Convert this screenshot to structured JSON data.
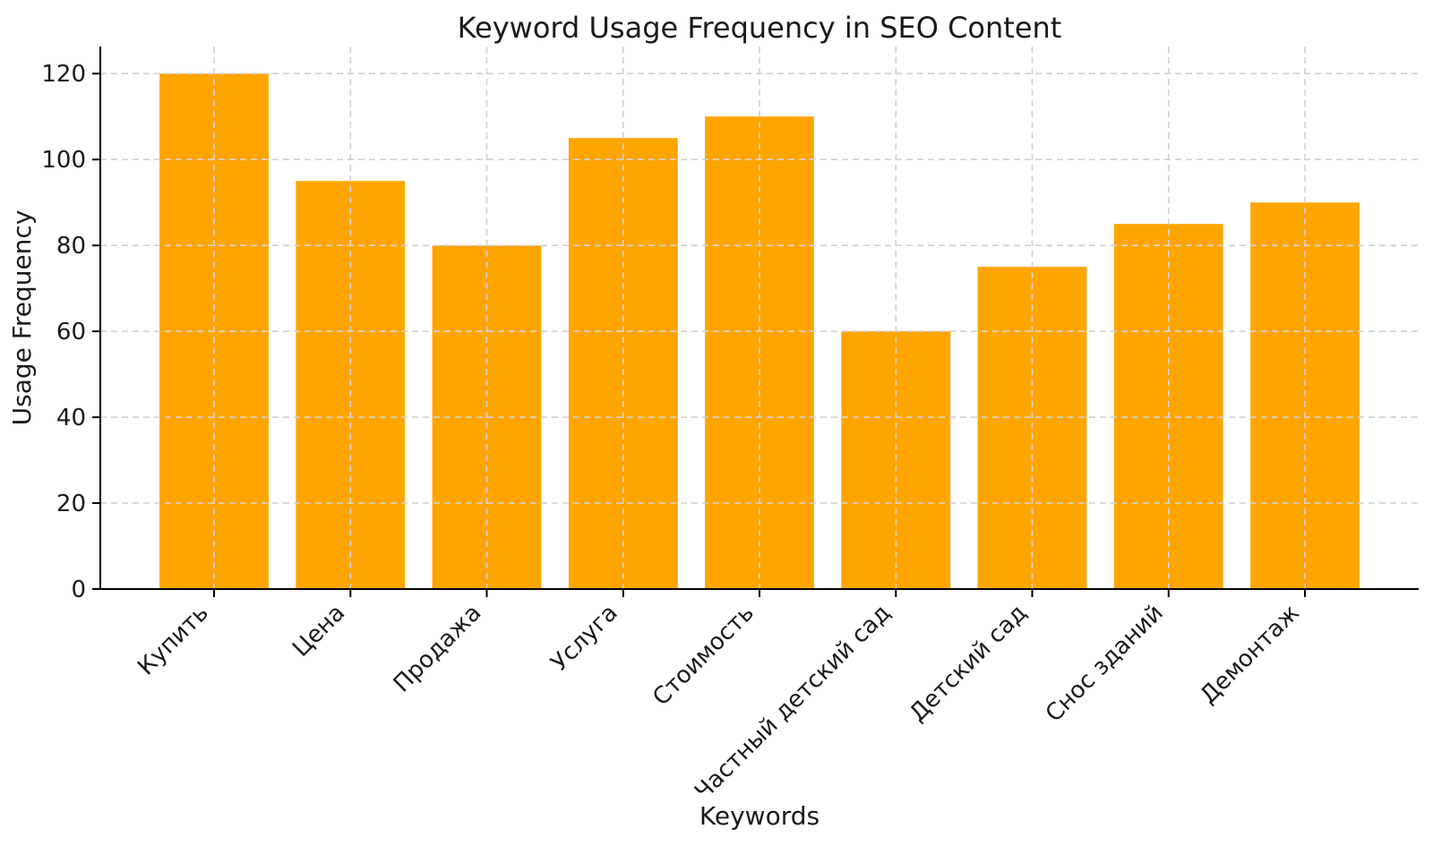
{
  "chart_data": {
    "type": "bar",
    "title": "Keyword Usage Frequency in SEO Content",
    "xlabel": "Keywords",
    "ylabel": "Usage Frequency",
    "categories": [
      "Купить",
      "Цена",
      "Продажа",
      "Услуга",
      "Стоимость",
      "Частный детский сад",
      "Детский сад",
      "Снос зданий",
      "Демонтаж"
    ],
    "values": [
      120,
      95,
      80,
      105,
      110,
      60,
      75,
      85,
      90
    ],
    "yticks": [
      0,
      20,
      40,
      60,
      80,
      100,
      120
    ],
    "ylim": [
      0,
      126.3
    ],
    "x_tick_rotation": 45,
    "grid": "dashed",
    "legend": "none",
    "bar_color": "#FFA500",
    "grid_color": "#d2d2d2",
    "axis_color": "#000000",
    "text_color": "#1a1a1a"
  }
}
